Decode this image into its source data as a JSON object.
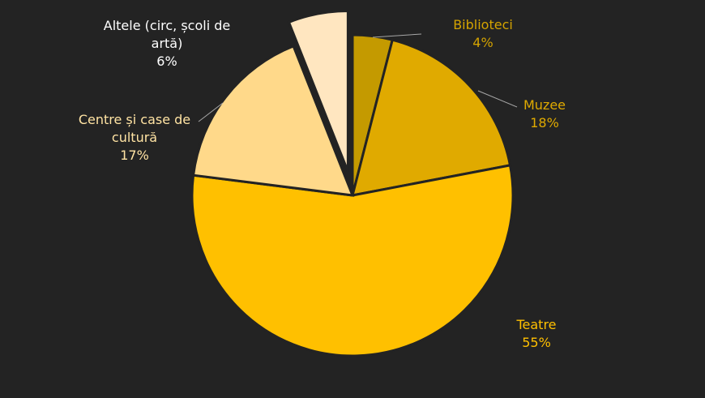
{
  "chart_data": {
    "type": "pie",
    "title": "",
    "slices": [
      {
        "label_lines": [
          "Biblioteci"
        ],
        "value": 4,
        "pct_label": "4%",
        "color": "#C49A00",
        "text_color": "#D4A300",
        "exploded": false
      },
      {
        "label_lines": [
          "Muzee"
        ],
        "value": 18,
        "pct_label": "18%",
        "color": "#E0AA00",
        "text_color": "#E0AA00",
        "exploded": false
      },
      {
        "label_lines": [
          "Teatre"
        ],
        "value": 55,
        "pct_label": "55%",
        "color": "#FFC000",
        "text_color": "#FFC000",
        "exploded": false
      },
      {
        "label_lines": [
          "Centre și case de",
          "cultură"
        ],
        "value": 17,
        "pct_label": "17%",
        "color": "#FFD98A",
        "text_color": "#FFE3A3",
        "exploded": false
      },
      {
        "label_lines": [
          "Altele (circ, școli de",
          "artă)"
        ],
        "value": 6,
        "pct_label": "6%",
        "color": "#FFE6C0",
        "text_color": "#FFFFFF",
        "exploded": true
      }
    ],
    "legend": "none",
    "background": "#232323"
  }
}
